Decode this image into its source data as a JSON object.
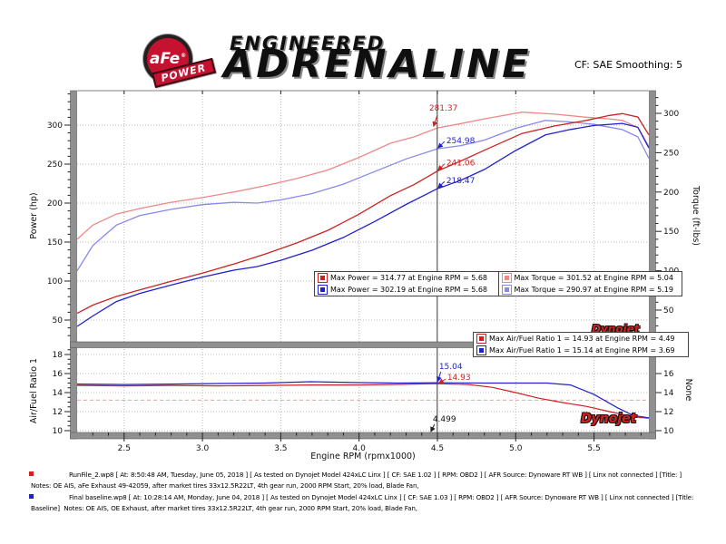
{
  "header": {
    "logo": {
      "brand": "aFe",
      "registered": "®",
      "sub": "POWER"
    },
    "tagline_top": "ENGINEERED",
    "tagline_main": "ADRENALINE",
    "cf_text": "CF: SAE Smoothing: 5"
  },
  "watermarks": {
    "main": "Dynojet",
    "afr": "Dynojet"
  },
  "legend_power_torque": {
    "rows": [
      {
        "cells": [
          {
            "color": "#cc2222",
            "label": "Max Power = 314.77 at Engine RPM = 5.68"
          },
          {
            "color": "#ee8888",
            "label": "Max Torque = 301.52 at Engine RPM = 5.04"
          }
        ]
      },
      {
        "cells": [
          {
            "color": "#2222cc",
            "label": "Max Power = 302.19 at Engine RPM = 5.68"
          },
          {
            "color": "#8888ee",
            "label": "Max Torque = 290.97 at Engine RPM = 5.19"
          }
        ]
      }
    ]
  },
  "legend_afr": {
    "rows": [
      {
        "cells": [
          {
            "color": "#cc2222",
            "label": "Max Air/Fuel Ratio 1 = 14.93 at Engine RPM = 4.49"
          }
        ]
      },
      {
        "cells": [
          {
            "color": "#2222cc",
            "label": "Max Air/Fuel Ratio 1 = 15.14 at Engine RPM = 3.69"
          }
        ]
      }
    ]
  },
  "chart_data": {
    "type": "line",
    "main_plot": {
      "xlabel": "Engine RPM (rpmx1000)",
      "ylabel_left": "Power (hp)",
      "ylabel_right": "Torque (ft-lbs)",
      "x_ticks": [
        "2.5",
        "3.0",
        "3.5",
        "4.0",
        "4.5",
        "5.0",
        "5.5"
      ],
      "x_range": [
        2.2,
        5.85
      ],
      "power_ticks": [
        50,
        100,
        150,
        200,
        250,
        300
      ],
      "torque_ticks": [
        50,
        100,
        150,
        200,
        250,
        300
      ],
      "ylim_left": [
        20,
        345
      ],
      "ylim_right": [
        8,
        330
      ],
      "grid": true,
      "series": [
        {
          "key": "torque-afe",
          "name": "Torque aFe (Max 301.52 ft-lbs @ 5.04)",
          "axis": "torque",
          "color": "#ee8888",
          "points": [
            [
              2.2,
              140
            ],
            [
              2.3,
              158
            ],
            [
              2.45,
              172
            ],
            [
              2.6,
              179
            ],
            [
              2.8,
              187
            ],
            [
              3.0,
              193
            ],
            [
              3.2,
              200
            ],
            [
              3.4,
              208
            ],
            [
              3.6,
              217
            ],
            [
              3.8,
              228
            ],
            [
              4.0,
              244
            ],
            [
              4.2,
              262
            ],
            [
              4.35,
              270
            ],
            [
              4.5,
              281.4
            ],
            [
              4.65,
              287
            ],
            [
              4.8,
              293
            ],
            [
              5.04,
              301.5
            ],
            [
              5.25,
              299
            ],
            [
              5.45,
              295
            ],
            [
              5.6,
              293
            ],
            [
              5.68,
              291
            ],
            [
              5.78,
              282
            ],
            [
              5.85,
              258
            ]
          ]
        },
        {
          "key": "torque-baseline",
          "name": "Torque baseline (Max 290.97 ft-lbs @ 5.19)",
          "axis": "torque",
          "color": "#8888ee",
          "points": [
            [
              2.2,
              100
            ],
            [
              2.3,
              132
            ],
            [
              2.45,
              158
            ],
            [
              2.6,
              170
            ],
            [
              2.8,
              178
            ],
            [
              3.0,
              184
            ],
            [
              3.2,
              187
            ],
            [
              3.35,
              186
            ],
            [
              3.5,
              190
            ],
            [
              3.7,
              198
            ],
            [
              3.9,
              210
            ],
            [
              4.1,
              226
            ],
            [
              4.3,
              242
            ],
            [
              4.5,
              255
            ],
            [
              4.65,
              259
            ],
            [
              4.8,
              266
            ],
            [
              5.0,
              281
            ],
            [
              5.19,
              291
            ],
            [
              5.35,
              289
            ],
            [
              5.5,
              286
            ],
            [
              5.68,
              279.4
            ],
            [
              5.78,
              270
            ],
            [
              5.85,
              243
            ]
          ]
        },
        {
          "key": "power-afe",
          "name": "Power aFe (Max 314.77 hp @ 5.68)",
          "axis": "power",
          "color": "#cc2222",
          "points": [
            [
              2.2,
              58.6
            ],
            [
              2.3,
              69.2
            ],
            [
              2.45,
              80.2
            ],
            [
              2.6,
              88.6
            ],
            [
              2.8,
              99.7
            ],
            [
              3.0,
              110.2
            ],
            [
              3.2,
              121.9
            ],
            [
              3.4,
              134.6
            ],
            [
              3.6,
              148.7
            ],
            [
              3.8,
              165.0
            ],
            [
              4.0,
              185.8
            ],
            [
              4.2,
              209.5
            ],
            [
              4.35,
              223.6
            ],
            [
              4.5,
              241.1
            ],
            [
              4.65,
              254.1
            ],
            [
              4.8,
              267.8
            ],
            [
              5.04,
              289.3
            ],
            [
              5.25,
              298.9
            ],
            [
              5.45,
              306.1
            ],
            [
              5.6,
              312.4
            ],
            [
              5.68,
              314.8
            ],
            [
              5.78,
              310.4
            ],
            [
              5.85,
              287.4
            ]
          ]
        },
        {
          "key": "power-baseline",
          "name": "Power baseline (Max 302.19 hp @ 5.68)",
          "axis": "power",
          "color": "#2222cc",
          "points": [
            [
              2.2,
              41.9
            ],
            [
              2.3,
              55.2
            ],
            [
              2.45,
              73.7
            ],
            [
              2.6,
              84.2
            ],
            [
              2.8,
              94.9
            ],
            [
              3.0,
              105.1
            ],
            [
              3.2,
              113.9
            ],
            [
              3.35,
              118.6
            ],
            [
              3.5,
              126.6
            ],
            [
              3.7,
              139.5
            ],
            [
              3.9,
              155.9
            ],
            [
              4.1,
              176.4
            ],
            [
              4.3,
              198.2
            ],
            [
              4.5,
              218.5
            ],
            [
              4.65,
              229.3
            ],
            [
              4.8,
              243.1
            ],
            [
              5.0,
              267.5
            ],
            [
              5.19,
              287.5
            ],
            [
              5.35,
              294.4
            ],
            [
              5.5,
              299.5
            ],
            [
              5.68,
              302.2
            ],
            [
              5.78,
              297.2
            ],
            [
              5.85,
              270.7
            ]
          ]
        }
      ]
    },
    "afr_plot": {
      "ylabel_left": "Air/Fuel Ratio 1",
      "ylabel_right": "None",
      "left_ticks": [
        10,
        12,
        14,
        16,
        18
      ],
      "right_ticks": [
        10,
        12,
        14,
        16
      ],
      "ylim": [
        9.7,
        18.6
      ],
      "target_line": 13.2,
      "grid": true,
      "series": [
        {
          "key": "afr-afe",
          "name": "Air/Fuel Ratio 1 aFe (Max 14.93 @ 4.49)",
          "color": "#cc2222",
          "points": [
            [
              2.2,
              14.75
            ],
            [
              2.5,
              14.7
            ],
            [
              2.8,
              14.75
            ],
            [
              3.1,
              14.7
            ],
            [
              3.4,
              14.75
            ],
            [
              3.7,
              14.8
            ],
            [
              4.0,
              14.8
            ],
            [
              4.2,
              14.85
            ],
            [
              4.49,
              14.93
            ],
            [
              4.7,
              14.85
            ],
            [
              4.85,
              14.55
            ],
            [
              5.0,
              14.0
            ],
            [
              5.15,
              13.4
            ],
            [
              5.3,
              12.95
            ],
            [
              5.45,
              12.55
            ],
            [
              5.6,
              12.0
            ],
            [
              5.75,
              11.45
            ],
            [
              5.85,
              11.3
            ]
          ]
        },
        {
          "key": "afr-baseline",
          "name": "Air/Fuel Ratio 1 baseline (Max 15.14 @ 3.69)",
          "color": "#2222cc",
          "points": [
            [
              2.2,
              14.9
            ],
            [
              2.5,
              14.85
            ],
            [
              2.8,
              14.9
            ],
            [
              3.1,
              14.95
            ],
            [
              3.4,
              15.0
            ],
            [
              3.69,
              15.14
            ],
            [
              4.0,
              15.05
            ],
            [
              4.25,
              15.0
            ],
            [
              4.5,
              15.04
            ],
            [
              4.8,
              15.0
            ],
            [
              5.0,
              15.0
            ],
            [
              5.2,
              15.0
            ],
            [
              5.35,
              14.8
            ],
            [
              5.5,
              13.8
            ],
            [
              5.65,
              12.4
            ],
            [
              5.75,
              11.6
            ],
            [
              5.85,
              11.35
            ]
          ]
        }
      ]
    },
    "cursor": {
      "rpm": 4.499,
      "rpm_label": "4.499",
      "main_labels": [
        {
          "text": "281.37",
          "value": 281.37,
          "axis": "torque",
          "color": "#cc2222"
        },
        {
          "text": "254.98",
          "value": 254.98,
          "axis": "torque",
          "color": "#2222cc"
        },
        {
          "text": "241.06",
          "value": 241.06,
          "axis": "power",
          "color": "#cc2222"
        },
        {
          "text": "218.47",
          "value": 218.47,
          "axis": "power",
          "color": "#2222cc"
        }
      ],
      "afr_labels": [
        {
          "text": "15.04",
          "value": 15.04,
          "color": "#2222cc"
        },
        {
          "text": "14.93",
          "value": 14.93,
          "color": "#cc2222"
        }
      ]
    }
  },
  "footer": {
    "runs": [
      {
        "bullet_color": "#cc2222",
        "file_info": "RunFile_2.wp8 [ At: 8:50:48 AM, Tuesday, June 05, 2018 ] [ As tested on Dynojet Model 424xLC Linx ] [ CF: SAE 1.02 ] [ RPM: OBD2 ] [ AFR Source: Dynoware RT WB ] [ Linx not connected ] [Title: ]",
        "notes": "Notes: OE AIS, aFe Exhaust 49-42059, after market tires 33x12.5R22LT, 4th gear run, 2000 RPM Start, 20% load, Blade Fan,"
      },
      {
        "bullet_color": "#2222cc",
        "file_info": "Final baseline.wp8 [ At: 10:28:14 AM, Monday, June 04, 2018 ] [ As tested on Dynojet Model 424xLC Linx ] [ CF: SAE 1.03 ] [ RPM: OBD2 ] [ AFR Source: Dynoware RT WB ] [ Linx not connected ] [Title:",
        "notes": "Baseline]  Notes: OE AIS, OE Exhaust, after market tires 33x12.5R22LT, 4th gear run, 2000 RPM Start, 20% load, Blade Fan,"
      }
    ]
  }
}
